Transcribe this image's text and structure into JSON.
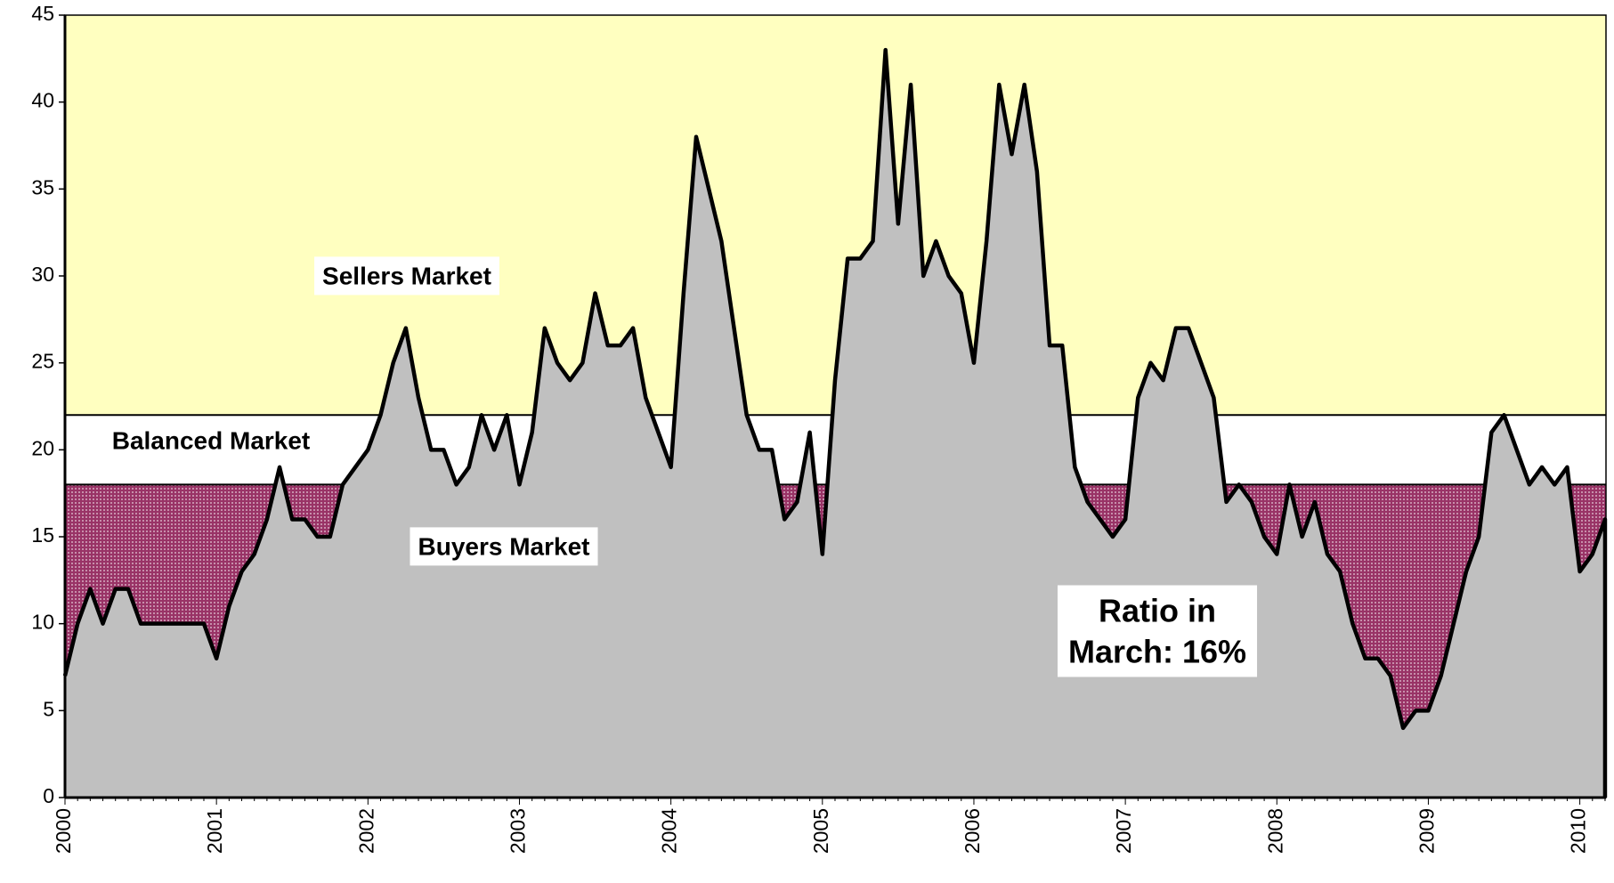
{
  "chart_data": {
    "type": "area",
    "categories": [
      "2000",
      null,
      null,
      null,
      null,
      null,
      null,
      null,
      null,
      null,
      null,
      null,
      "2001",
      null,
      null,
      null,
      null,
      null,
      null,
      null,
      null,
      null,
      null,
      null,
      "2002",
      null,
      null,
      null,
      null,
      null,
      null,
      null,
      null,
      null,
      null,
      null,
      "2003",
      null,
      null,
      null,
      null,
      null,
      null,
      null,
      null,
      null,
      null,
      null,
      "2004",
      null,
      null,
      null,
      null,
      null,
      null,
      null,
      null,
      null,
      null,
      null,
      "2005",
      null,
      null,
      null,
      null,
      null,
      null,
      null,
      null,
      null,
      null,
      null,
      "2006",
      null,
      null,
      null,
      null,
      null,
      null,
      null,
      null,
      null,
      null,
      null,
      "2007",
      null,
      null,
      null,
      null,
      null,
      null,
      null,
      null,
      null,
      null,
      null,
      "2008",
      null,
      null,
      null,
      null,
      null,
      null,
      null,
      null,
      null,
      null,
      null,
      "2009",
      null,
      null,
      null,
      null,
      null,
      null,
      null,
      null,
      null,
      null,
      null,
      "2010",
      null,
      null
    ],
    "values": [
      7,
      10,
      12,
      10,
      12,
      12,
      10,
      10,
      10,
      10,
      10,
      10,
      8,
      11,
      13,
      14,
      16,
      19,
      16,
      16,
      15,
      15,
      18,
      19,
      20,
      22,
      25,
      27,
      23,
      20,
      20,
      18,
      19,
      22,
      20,
      22,
      18,
      21,
      27,
      25,
      24,
      25,
      29,
      26,
      26,
      27,
      23,
      21,
      19,
      29,
      38,
      35,
      32,
      27,
      22,
      20,
      20,
      16,
      17,
      21,
      14,
      24,
      31,
      31,
      32,
      43,
      33,
      41,
      30,
      32,
      30,
      29,
      25,
      32,
      41,
      37,
      41,
      36,
      26,
      26,
      19,
      17,
      16,
      15,
      16,
      23,
      25,
      24,
      27,
      27,
      25,
      23,
      17,
      18,
      17,
      15,
      14,
      18,
      15,
      17,
      14,
      13,
      10,
      8,
      8,
      7,
      4,
      5,
      5,
      7,
      10,
      13,
      15,
      21,
      22,
      20,
      18,
      19,
      18,
      19,
      13,
      14,
      16
    ],
    "color": "#c0c0c0",
    "line_color": "#000000",
    "ylim": [
      0,
      45
    ],
    "yticks": [
      0,
      5,
      10,
      15,
      20,
      25,
      30,
      35,
      40,
      45
    ],
    "bands": [
      {
        "name": "Sellers Market",
        "from": 22,
        "to": 45,
        "color": "#ffffc0"
      },
      {
        "name": "Balanced Market",
        "from": 18,
        "to": 22,
        "color": "#ffffff"
      },
      {
        "name": "Buyers Market",
        "from": 0,
        "to": 18,
        "color": "#993366"
      }
    ],
    "annotation": [
      "Ratio in",
      "March: 16%"
    ]
  }
}
